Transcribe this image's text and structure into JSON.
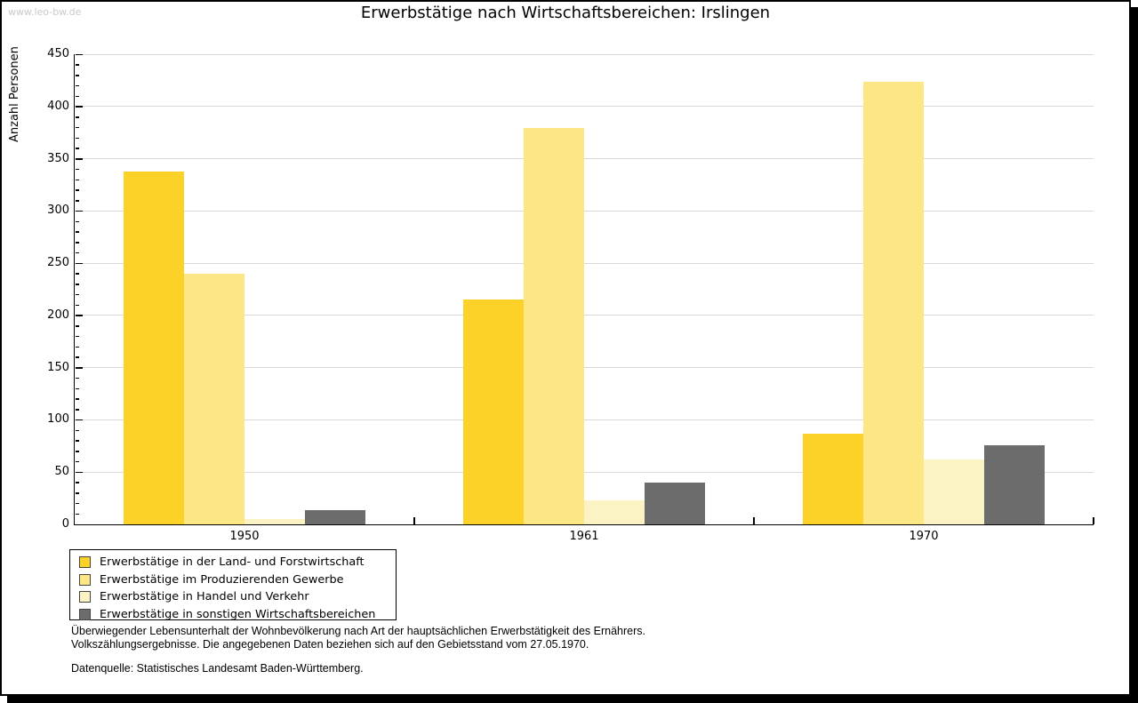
{
  "watermark": "www.leo-bw.de",
  "chart_data": {
    "type": "bar",
    "title": "Erwerbstätige nach Wirtschaftsbereichen: Irslingen",
    "ylabel": "Anzahl Personen",
    "xlabel": "",
    "categories": [
      "1950",
      "1961",
      "1970"
    ],
    "series": [
      {
        "name": "Erwerbstätige in der Land- und Forstwirtschaft",
        "color": "#fcd229",
        "values": [
          338,
          215,
          87
        ]
      },
      {
        "name": "Erwerbstätige im Produzierenden Gewerbe",
        "color": "#fce784",
        "values": [
          240,
          379,
          424
        ]
      },
      {
        "name": "Erwerbstätige in Handel und Verkehr",
        "color": "#fcf3c5",
        "values": [
          5,
          23,
          62
        ]
      },
      {
        "name": "Erwerbstätige in sonstigen Wirtschaftsbereichen",
        "color": "#6c6c6c",
        "values": [
          14,
          40,
          76
        ]
      }
    ],
    "ylim": [
      0,
      450
    ],
    "ytick_step": 50,
    "minor_tick_step": 10,
    "grid": true,
    "legend_position": "bottom-left"
  },
  "colors": {
    "grid": "#d9d9d9",
    "axis": "#000000",
    "watermark": "#c9c9c9"
  },
  "footnotes": {
    "line1": "Überwiegender Lebensunterhalt der Wohnbevölkerung nach Art der hauptsächlichen Erwerbstätigkeit des Ernährers.",
    "line2": "Volkszählungsergebnisse. Die angegebenen Daten beziehen sich auf den Gebietsstand vom 27.05.1970.",
    "source": "Datenquelle: Statistisches Landesamt Baden-Württemberg."
  }
}
